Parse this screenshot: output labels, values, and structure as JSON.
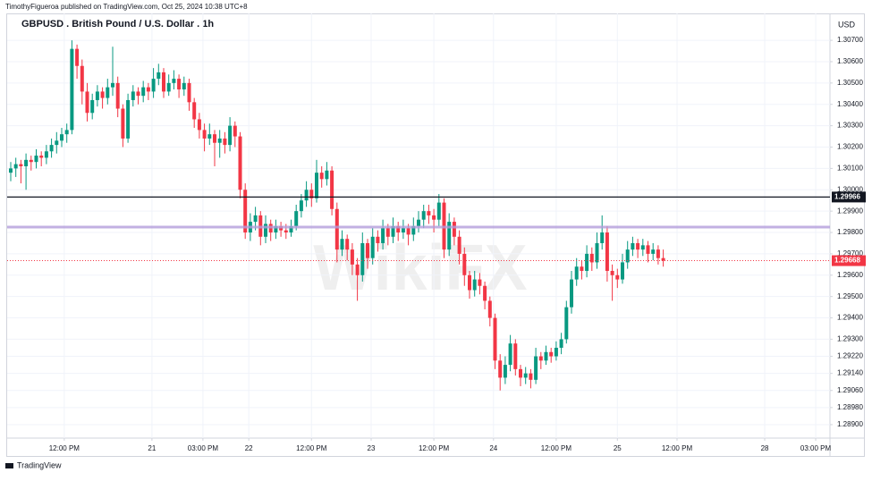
{
  "chart_data": {
    "type": "candlestick",
    "header": "TimothyFigueroa published on TradingView.com, Oct 25, 2024 10:38 UTC+8",
    "title": "GBPUSD . British Pound / U.S. Dollar . 1h",
    "currency": "USD",
    "footer": "TradingView",
    "watermark": "WikiFX",
    "up_color": "#089981",
    "down_color": "#f23645",
    "ylim": [
      1.28837,
      1.30826
    ],
    "yticks": [
      {
        "value": 1.307,
        "label": "1.30700"
      },
      {
        "value": 1.306,
        "label": "1.30600"
      },
      {
        "value": 1.305,
        "label": "1.30500"
      },
      {
        "value": 1.304,
        "label": "1.30400"
      },
      {
        "value": 1.303,
        "label": "1.30300"
      },
      {
        "value": 1.302,
        "label": "1.30200"
      },
      {
        "value": 1.301,
        "label": "1.30100"
      },
      {
        "value": 1.3,
        "label": "1.30000"
      },
      {
        "value": 1.299,
        "label": "1.29900"
      },
      {
        "value": 1.298,
        "label": "1.29800"
      },
      {
        "value": 1.297,
        "label": "1.29700"
      },
      {
        "value": 1.296,
        "label": "1.29600"
      },
      {
        "value": 1.295,
        "label": "1.29500"
      },
      {
        "value": 1.294,
        "label": "1.29400"
      },
      {
        "value": 1.293,
        "label": "1.29300"
      },
      {
        "value": 1.2922,
        "label": "1.29220"
      },
      {
        "value": 1.2914,
        "label": "1.29140"
      },
      {
        "value": 1.2906,
        "label": "1.29060"
      },
      {
        "value": 1.2898,
        "label": "1.28980"
      },
      {
        "value": 1.289,
        "label": "1.28900"
      }
    ],
    "xlim": [
      -0.7,
      160.7
    ],
    "xticks": [
      {
        "value": 10.5,
        "label": "12:00 PM"
      },
      {
        "value": 27.7,
        "label": "21"
      },
      {
        "value": 37.7,
        "label": "03:00 PM"
      },
      {
        "value": 46.7,
        "label": "22"
      },
      {
        "value": 59,
        "label": "12:00 PM"
      },
      {
        "value": 70.7,
        "label": "23"
      },
      {
        "value": 83,
        "label": "12:00 PM"
      },
      {
        "value": 94.7,
        "label": "24"
      },
      {
        "value": 107,
        "label": "12:00 PM"
      },
      {
        "value": 119,
        "label": "25"
      },
      {
        "value": 130.7,
        "label": "12:00 PM"
      },
      {
        "value": 147.9,
        "label": "28"
      },
      {
        "value": 157.9,
        "label": "03:00 PM"
      }
    ],
    "grid": true,
    "hlines": [
      {
        "value": 1.29966,
        "color": "#131722",
        "style": "solid",
        "axis_label": true
      },
      {
        "value": 1.29825,
        "color": "#b39ddb",
        "style": "thick",
        "axis_label": false
      },
      {
        "value": 1.29668,
        "color": "#f23645",
        "style": "dotted",
        "axis_label": true
      }
    ],
    "ohlc": [
      [
        1.3008,
        1.3013,
        1.3004,
        1.301
      ],
      [
        1.301,
        1.3015,
        1.3006,
        1.3012
      ],
      [
        1.3012,
        1.3014,
        1.3003,
        1.3011
      ],
      [
        1.3011,
        1.3017,
        1.3,
        1.3014
      ],
      [
        1.3014,
        1.3016,
        1.3009,
        1.3013
      ],
      [
        1.3013,
        1.3019,
        1.301,
        1.3016
      ],
      [
        1.3016,
        1.3018,
        1.3011,
        1.3015
      ],
      [
        1.3015,
        1.3021,
        1.3012,
        1.3018
      ],
      [
        1.3018,
        1.3024,
        1.3015,
        1.3021
      ],
      [
        1.3021,
        1.3027,
        1.3017,
        1.3023
      ],
      [
        1.3023,
        1.3029,
        1.302,
        1.3026
      ],
      [
        1.3026,
        1.3031,
        1.3022,
        1.3028
      ],
      [
        1.3028,
        1.307,
        1.3026,
        1.3066
      ],
      [
        1.3066,
        1.3068,
        1.3052,
        1.3058
      ],
      [
        1.3058,
        1.3061,
        1.304,
        1.3046
      ],
      [
        1.3046,
        1.305,
        1.3032,
        1.3036
      ],
      [
        1.3036,
        1.3045,
        1.3033,
        1.3042
      ],
      [
        1.3042,
        1.3049,
        1.3039,
        1.3046
      ],
      [
        1.3046,
        1.3048,
        1.3038,
        1.3043
      ],
      [
        1.3043,
        1.3052,
        1.304,
        1.3048
      ],
      [
        1.3048,
        1.3067,
        1.3044,
        1.305
      ],
      [
        1.305,
        1.3053,
        1.3034,
        1.3038
      ],
      [
        1.3038,
        1.304,
        1.302,
        1.3024
      ],
      [
        1.3024,
        1.3045,
        1.3022,
        1.3042
      ],
      [
        1.3042,
        1.3049,
        1.3039,
        1.3046
      ],
      [
        1.3046,
        1.3048,
        1.304,
        1.3044
      ],
      [
        1.3044,
        1.3051,
        1.3041,
        1.3048
      ],
      [
        1.3048,
        1.305,
        1.3042,
        1.3046
      ],
      [
        1.3046,
        1.3057,
        1.3043,
        1.3052
      ],
      [
        1.3052,
        1.3059,
        1.3049,
        1.3055
      ],
      [
        1.3055,
        1.3057,
        1.3043,
        1.3046
      ],
      [
        1.3046,
        1.3054,
        1.3044,
        1.305
      ],
      [
        1.305,
        1.3056,
        1.3047,
        1.3052
      ],
      [
        1.3052,
        1.3054,
        1.3043,
        1.3047
      ],
      [
        1.3047,
        1.3053,
        1.3044,
        1.305
      ],
      [
        1.305,
        1.3052,
        1.3037,
        1.3041
      ],
      [
        1.3041,
        1.3043,
        1.3029,
        1.3033
      ],
      [
        1.3033,
        1.3036,
        1.3024,
        1.3028
      ],
      [
        1.3028,
        1.3031,
        1.3018,
        1.3024
      ],
      [
        1.3024,
        1.3031,
        1.3021,
        1.3026
      ],
      [
        1.3026,
        1.3028,
        1.3011,
        1.3022
      ],
      [
        1.3022,
        1.3028,
        1.3015,
        1.3024
      ],
      [
        1.3024,
        1.3027,
        1.3017,
        1.3021
      ],
      [
        1.3021,
        1.3034,
        1.3018,
        1.303
      ],
      [
        1.303,
        1.3032,
        1.302,
        1.3025
      ],
      [
        1.3025,
        1.3027,
        1.2996,
        1.3
      ],
      [
        1.3,
        1.3003,
        1.2977,
        1.298
      ],
      [
        1.298,
        1.2989,
        1.2976,
        1.2985
      ],
      [
        1.2985,
        1.2992,
        1.2981,
        1.2988
      ],
      [
        1.2988,
        1.299,
        1.2974,
        1.2978
      ],
      [
        1.2978,
        1.2988,
        1.2975,
        1.2984
      ],
      [
        1.2984,
        1.2986,
        1.2976,
        1.298
      ],
      [
        1.298,
        1.2986,
        1.2977,
        1.2983
      ],
      [
        1.2983,
        1.2985,
        1.2978,
        1.2981
      ],
      [
        1.2981,
        1.2984,
        1.2977,
        1.298
      ],
      [
        1.298,
        1.2986,
        1.2978,
        1.2983
      ],
      [
        1.2983,
        1.2993,
        1.2981,
        1.299
      ],
      [
        1.299,
        1.2998,
        1.2987,
        1.2995
      ],
      [
        1.2995,
        1.3004,
        1.2992,
        1.3
      ],
      [
        1.3,
        1.3003,
        1.2992,
        1.2996
      ],
      [
        1.2996,
        1.3014,
        1.2994,
        1.3008
      ],
      [
        1.3008,
        1.3011,
        1.3001,
        1.3005
      ],
      [
        1.3005,
        1.3013,
        1.3002,
        1.3009
      ],
      [
        1.3009,
        1.3011,
        1.2988,
        1.2991
      ],
      [
        1.2991,
        1.2994,
        1.2966,
        1.2972
      ],
      [
        1.2972,
        1.2981,
        1.2969,
        1.2977
      ],
      [
        1.2977,
        1.2979,
        1.2967,
        1.2972
      ],
      [
        1.2972,
        1.2975,
        1.296,
        1.2965
      ],
      [
        1.2965,
        1.2968,
        1.2948,
        1.296
      ],
      [
        1.296,
        1.298,
        1.2957,
        1.2975
      ],
      [
        1.2975,
        1.2977,
        1.2963,
        1.2968
      ],
      [
        1.2968,
        1.2982,
        1.2965,
        1.2978
      ],
      [
        1.2978,
        1.2981,
        1.2971,
        1.2975
      ],
      [
        1.2975,
        1.2986,
        1.2972,
        1.2982
      ],
      [
        1.2982,
        1.2984,
        1.2974,
        1.2978
      ],
      [
        1.2978,
        1.2987,
        1.2975,
        1.2983
      ],
      [
        1.2983,
        1.2985,
        1.2976,
        1.298
      ],
      [
        1.298,
        1.2986,
        1.2977,
        1.2982
      ],
      [
        1.2982,
        1.2984,
        1.2974,
        1.2979
      ],
      [
        1.2979,
        1.2987,
        1.2976,
        1.2983
      ],
      [
        1.2983,
        1.299,
        1.298,
        1.2986
      ],
      [
        1.2986,
        1.2993,
        1.2982,
        1.299
      ],
      [
        1.299,
        1.2993,
        1.2984,
        1.2988
      ],
      [
        1.2988,
        1.2991,
        1.298,
        1.2986
      ],
      [
        1.2986,
        1.2998,
        1.2983,
        1.2994
      ],
      [
        1.2994,
        1.2996,
        1.2968,
        1.2972
      ],
      [
        1.2972,
        1.2989,
        1.2969,
        1.2985
      ],
      [
        1.2985,
        1.2987,
        1.2974,
        1.2978
      ],
      [
        1.2978,
        1.2981,
        1.2965,
        1.297
      ],
      [
        1.297,
        1.2973,
        1.2955,
        1.296
      ],
      [
        1.296,
        1.2962,
        1.2949,
        1.2953
      ],
      [
        1.2953,
        1.2962,
        1.295,
        1.2958
      ],
      [
        1.2958,
        1.2961,
        1.2951,
        1.2955
      ],
      [
        1.2955,
        1.2957,
        1.2944,
        1.2948
      ],
      [
        1.2948,
        1.295,
        1.2936,
        1.294
      ],
      [
        1.294,
        1.2942,
        1.2916,
        1.292
      ],
      [
        1.292,
        1.2923,
        1.2906,
        1.2912
      ],
      [
        1.2912,
        1.2922,
        1.2909,
        1.2918
      ],
      [
        1.2918,
        1.2932,
        1.2915,
        1.2928
      ],
      [
        1.2928,
        1.293,
        1.2913,
        1.2916
      ],
      [
        1.2916,
        1.2918,
        1.2908,
        1.2912
      ],
      [
        1.2912,
        1.2917,
        1.2909,
        1.2914
      ],
      [
        1.2914,
        1.2916,
        1.2907,
        1.2911
      ],
      [
        1.2911,
        1.2926,
        1.2909,
        1.2922
      ],
      [
        1.2922,
        1.2924,
        1.2916,
        1.292
      ],
      [
        1.292,
        1.2927,
        1.2918,
        1.2924
      ],
      [
        1.2924,
        1.2926,
        1.2919,
        1.2922
      ],
      [
        1.2922,
        1.2929,
        1.292,
        1.2926
      ],
      [
        1.2926,
        1.2933,
        1.2923,
        1.293
      ],
      [
        1.293,
        1.2948,
        1.2928,
        1.2945
      ],
      [
        1.2945,
        1.2962,
        1.2942,
        1.2958
      ],
      [
        1.2958,
        1.2968,
        1.2955,
        1.2964
      ],
      [
        1.2964,
        1.2967,
        1.2958,
        1.2962
      ],
      [
        1.2962,
        1.2974,
        1.2959,
        1.297
      ],
      [
        1.297,
        1.2973,
        1.2962,
        1.2966
      ],
      [
        1.2966,
        1.298,
        1.2963,
        1.2975
      ],
      [
        1.2975,
        1.2988,
        1.2972,
        1.298
      ],
      [
        1.298,
        1.2983,
        1.2957,
        1.2962
      ],
      [
        1.2962,
        1.2965,
        1.2948,
        1.296
      ],
      [
        1.296,
        1.2963,
        1.2954,
        1.2958
      ],
      [
        1.2958,
        1.297,
        1.2956,
        1.2966
      ],
      [
        1.2966,
        1.2976,
        1.2963,
        1.2972
      ],
      [
        1.2972,
        1.2978,
        1.2969,
        1.2975
      ],
      [
        1.2975,
        1.2977,
        1.2968,
        1.2972
      ],
      [
        1.2972,
        1.2977,
        1.2969,
        1.2974
      ],
      [
        1.2974,
        1.2976,
        1.2966,
        1.297
      ],
      [
        1.297,
        1.2975,
        1.2967,
        1.2972
      ],
      [
        1.2972,
        1.2974,
        1.2965,
        1.2968
      ],
      [
        1.2968,
        1.2972,
        1.2964,
        1.29668
      ]
    ]
  }
}
